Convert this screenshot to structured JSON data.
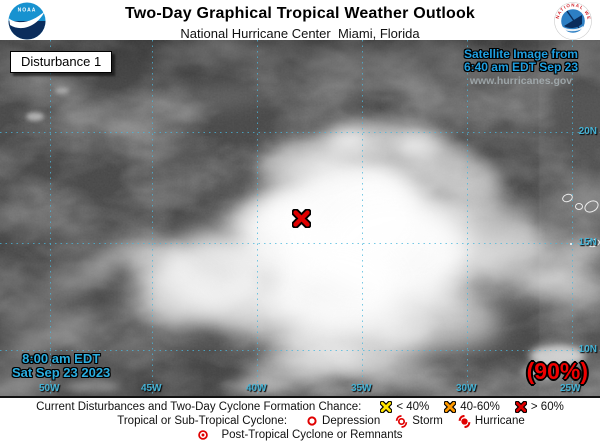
{
  "header": {
    "title": "Two-Day Graphical Tropical Weather Outlook",
    "subtitle": "National Hurricane Center  Miami, Florida",
    "noaa_logo_text": "NOAA",
    "nws_ring_text": "NATIONAL WEATHER SERVICE"
  },
  "map": {
    "disturbance_box": "Disturbance 1",
    "satellite_credit": {
      "line1": "Satellite Image from",
      "line2": "6:40 am EDT Sep 23",
      "url": "www.hurricanes.gov"
    },
    "timestamp": {
      "line1": "8:00 am EDT",
      "line2": "Sat Sep 23 2023"
    },
    "formation_chance": "(90%)",
    "marker": {
      "symbol": "red-x",
      "color": "#e00000"
    },
    "grid": {
      "lon_labels": [
        "50W",
        "45W",
        "40W",
        "35W",
        "30W",
        "25W"
      ],
      "lat_labels": [
        "20N",
        "15N",
        "10N"
      ],
      "line_color": "#49b7dc"
    }
  },
  "legend": {
    "row1": {
      "label": "Current Disturbances and Two-Day Cyclone Formation Chance:",
      "items": [
        {
          "label": "< 40%",
          "color": "#ffe400"
        },
        {
          "label": "40-60%",
          "color": "#ff9900"
        },
        {
          "label": "> 60%",
          "color": "#e00000"
        }
      ]
    },
    "row2": {
      "label": "Tropical or Sub-Tropical Cyclone:",
      "items": [
        {
          "label": "Depression"
        },
        {
          "label": "Storm"
        },
        {
          "label": "Hurricane"
        }
      ]
    },
    "row3": {
      "label": "Post-Tropical Cyclone or Remnants"
    },
    "symbol_red": "#e00000"
  }
}
